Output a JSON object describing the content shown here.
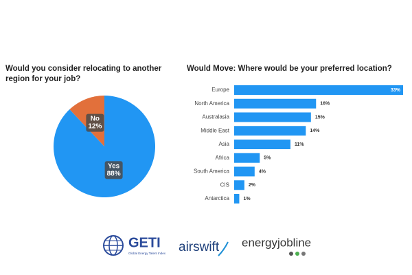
{
  "chart_data": [
    {
      "type": "pie",
      "title": "Would you consider relocating to another region for your job?",
      "categories": [
        "Yes",
        "No"
      ],
      "values": [
        88,
        12
      ],
      "value_labels": [
        "88%",
        "12%"
      ],
      "colors": [
        "#2196f3",
        "#e2703b"
      ]
    },
    {
      "type": "hbar",
      "title": "Would Move: Where would be your preferred location?",
      "categories": [
        "Europe",
        "North America",
        "Australasia",
        "Middle East",
        "Asia",
        "Africa",
        "South America",
        "CIS",
        "Antarctica"
      ],
      "values": [
        33,
        16,
        15,
        14,
        11,
        5,
        4,
        2,
        1
      ],
      "value_labels": [
        "33%",
        "16%",
        "15%",
        "14%",
        "11%",
        "5%",
        "4%",
        "2%",
        "1%"
      ],
      "color": "#2196f3"
    }
  ],
  "footer": {
    "logos": [
      "GETI",
      "Global Energy Talent Index",
      "airswift",
      "energyjobline"
    ]
  }
}
